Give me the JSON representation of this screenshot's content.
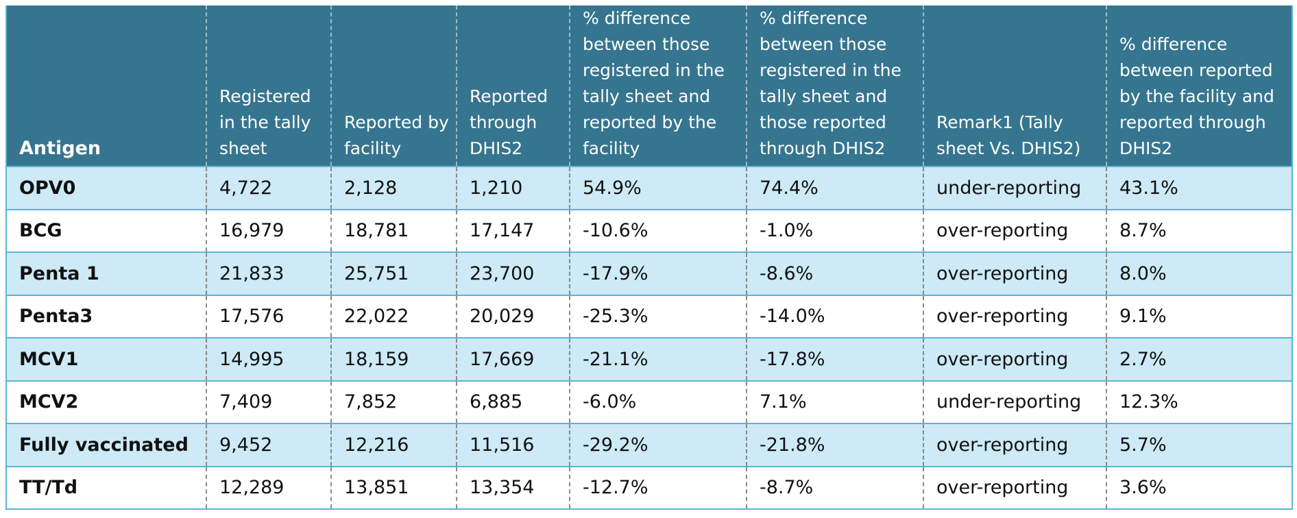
{
  "table": {
    "headers": [
      "Antigen",
      "Registered in the tally sheet",
      "Reported by facility",
      "Reported through DHIS2",
      "% difference between those registered in the tally sheet and reported by the facility",
      "% difference between those registered in the tally sheet and those reported through DHIS2",
      "Remark1 (Tally sheet Vs. DHIS2)",
      "% difference between reported by the facility and reported through DHIS2"
    ],
    "rows": [
      [
        "OPV0",
        "4,722",
        "2,128",
        "1,210",
        "54.9%",
        "74.4%",
        "under-reporting",
        "43.1%"
      ],
      [
        "BCG",
        "16,979",
        "18,781",
        "17,147",
        "-10.6%",
        "-1.0%",
        "over-reporting",
        "8.7%"
      ],
      [
        "Penta 1",
        "21,833",
        "25,751",
        "23,700",
        "-17.9%",
        "-8.6%",
        "over-reporting",
        "8.0%"
      ],
      [
        "Penta3",
        "17,576",
        "22,022",
        "20,029",
        "-25.3%",
        "-14.0%",
        "over-reporting",
        "9.1%"
      ],
      [
        "MCV1",
        "14,995",
        "18,159",
        "17,669",
        "-21.1%",
        "-17.8%",
        "over-reporting",
        "2.7%"
      ],
      [
        "MCV2",
        "7,409",
        "7,852",
        "6,885",
        "-6.0%",
        "7.1%",
        "under-reporting",
        "12.3%"
      ],
      [
        "Fully vaccinated",
        "9,452",
        "12,216",
        "11,516",
        "-29.2%",
        "-21.8%",
        "over-reporting",
        "5.7%"
      ],
      [
        "TT/Td",
        "12,289",
        "13,851",
        "13,354",
        "-12.7%",
        "-8.7%",
        "over-reporting",
        "3.6%"
      ]
    ]
  },
  "colors": {
    "header_bg": "#36758f",
    "band_bg": "#cdeaf6",
    "rule": "#5bb4d6"
  }
}
